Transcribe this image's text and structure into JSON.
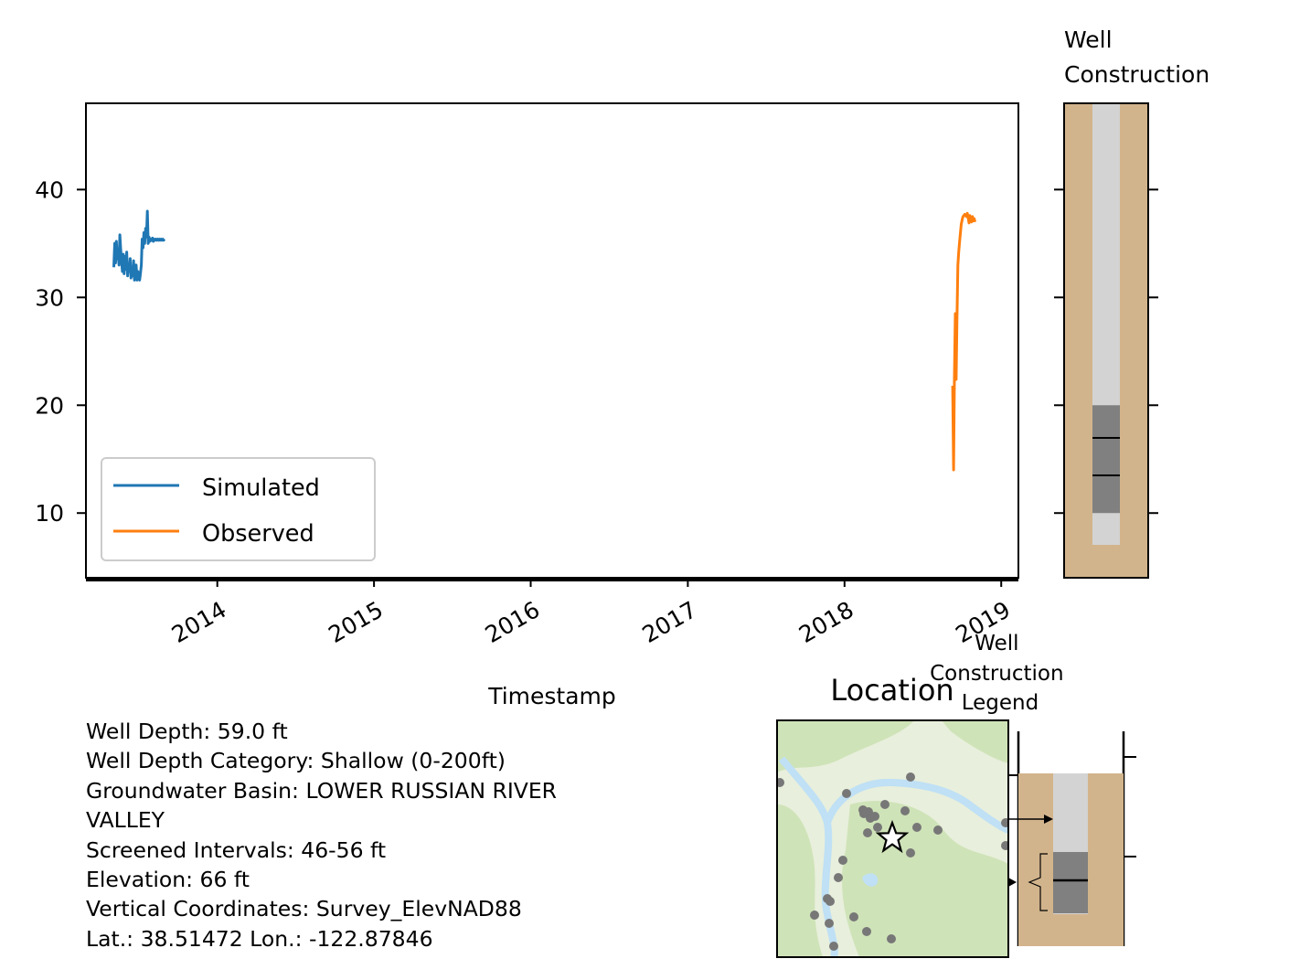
{
  "chart_data": [
    {
      "type": "line",
      "title": "",
      "xlabel": "Timestamp",
      "ylabel": "",
      "xlim": [
        "2013-03-01",
        "2019-02-10"
      ],
      "ylim": [
        4,
        48
      ],
      "yticks": [
        "10",
        "20",
        "30",
        "40"
      ],
      "xticks": [
        "2014",
        "2015",
        "2016",
        "2017",
        "2018",
        "2019"
      ],
      "grid": false,
      "legend": "lower-left",
      "series": [
        {
          "name": "Simulated",
          "color": "#1f77b4",
          "x": [
            "2013-05-05",
            "2013-05-07",
            "2013-05-09",
            "2013-05-11",
            "2013-05-13",
            "2013-05-15",
            "2013-05-17",
            "2013-05-19",
            "2013-05-21",
            "2013-05-23",
            "2013-05-25",
            "2013-05-27",
            "2013-05-29",
            "2013-05-31",
            "2013-06-02",
            "2013-06-04",
            "2013-06-06",
            "2013-06-08",
            "2013-06-10",
            "2013-06-12",
            "2013-06-14",
            "2013-06-16",
            "2013-06-18",
            "2013-06-20",
            "2013-06-22",
            "2013-06-24",
            "2013-06-26",
            "2013-06-28",
            "2013-06-30",
            "2013-07-02",
            "2013-07-04",
            "2013-07-06",
            "2013-07-08",
            "2013-07-10",
            "2013-07-12",
            "2013-07-14",
            "2013-07-16",
            "2013-07-18",
            "2013-07-20",
            "2013-07-22",
            "2013-07-24",
            "2013-07-26",
            "2013-07-28",
            "2013-07-30",
            "2013-08-01",
            "2013-08-03",
            "2013-08-05",
            "2013-08-07",
            "2013-08-09",
            "2013-08-11",
            "2013-08-13",
            "2013-08-15",
            "2013-08-17",
            "2013-08-19",
            "2013-08-21",
            "2013-08-23",
            "2013-08-25",
            "2013-08-27",
            "2013-08-29",
            "2013-08-31"
          ],
          "y": [
            32.8,
            35.0,
            33.2,
            35.2,
            33.6,
            34.0,
            33.0,
            35.8,
            34.5,
            33.4,
            32.4,
            34.0,
            32.2,
            33.8,
            32.6,
            34.2,
            32.0,
            33.0,
            32.4,
            33.6,
            31.8,
            32.5,
            32.0,
            33.4,
            31.6,
            32.2,
            33.0,
            31.6,
            32.4,
            31.8,
            31.6,
            32.2,
            33.0,
            35.4,
            34.6,
            36.0,
            35.0,
            36.4,
            35.6,
            38.0,
            35.0,
            35.6,
            35.2,
            35.4,
            35.3,
            35.5,
            35.2,
            35.4,
            35.3,
            35.4,
            35.3,
            35.4,
            35.3,
            35.4,
            35.3,
            35.4,
            35.3,
            35.4,
            35.3,
            35.4
          ]
        },
        {
          "name": "Observed",
          "color": "#ff7f0e",
          "x": [
            "2018-09-10",
            "2018-09-12",
            "2018-09-14",
            "2018-09-16",
            "2018-09-18",
            "2018-09-20",
            "2018-09-22",
            "2018-09-24",
            "2018-09-26",
            "2018-09-28",
            "2018-09-30",
            "2018-10-02",
            "2018-10-04",
            "2018-10-06",
            "2018-10-08",
            "2018-10-10",
            "2018-10-12",
            "2018-10-14",
            "2018-10-16",
            "2018-10-18",
            "2018-10-20",
            "2018-10-22",
            "2018-10-24",
            "2018-10-26",
            "2018-10-28",
            "2018-10-30",
            "2018-11-01"
          ],
          "y": [
            21.8,
            14.0,
            22.5,
            28.5,
            22.4,
            28.0,
            33.0,
            34.2,
            35.2,
            36.0,
            36.8,
            37.2,
            37.5,
            37.6,
            37.7,
            37.6,
            37.5,
            37.8,
            37.4,
            36.9,
            37.6,
            37.3,
            37.0,
            37.5,
            37.1,
            37.3,
            37.0
          ]
        }
      ]
    },
    {
      "type": "other",
      "title": "Well\nConstruction",
      "ylim": [
        4,
        48
      ],
      "casing_depth_range": [
        7,
        48
      ],
      "screen_range": [
        10,
        20
      ],
      "screen_lines": [
        13.4,
        16.8
      ]
    },
    {
      "type": "scatter",
      "title": "Location",
      "well_marker": "star",
      "nearby_well_count": 27
    },
    {
      "type": "other",
      "title": "Well\nConstruction\nLegend"
    }
  ],
  "info_lines": [
    "Well Depth: 59.0 ft",
    "Well Depth Category: Shallow (0-200ft)",
    "Groundwater Basin: LOWER RUSSIAN RIVER",
    "VALLEY",
    "Screened Intervals: 46-56 ft",
    "Elevation: 66 ft",
    "Vertical Coordinates: Survey_ElevNAD88",
    "Lat.: 38.51472 Lon.: -122.87846"
  ],
  "colors": {
    "soil": "#d2b48c",
    "casing": "#d3d3d3",
    "screen": "#808080",
    "map_land": "#e8efdc",
    "map_forest": "#cfe3b8",
    "map_water": "#bfe0f5",
    "well_dot": "#777777"
  }
}
